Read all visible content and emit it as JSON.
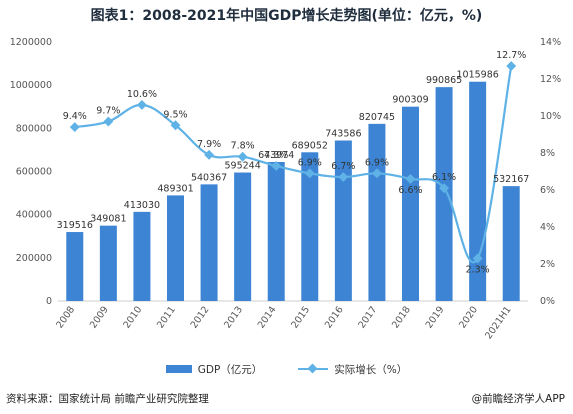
{
  "chart_data": {
    "type": "bar",
    "title": "图表1：2008-2021年中国GDP增长走势图(单位：亿元，%)",
    "categories": [
      "2008",
      "2009",
      "2010",
      "2011",
      "2012",
      "2013",
      "2014",
      "2015",
      "2016",
      "2017",
      "2018",
      "2019",
      "2020",
      "2021H1"
    ],
    "series": [
      {
        "name": "GDP（亿元）",
        "type": "bar",
        "axis": "left",
        "color": "#3d85d4",
        "values": [
          319516,
          349081,
          413030,
          489301,
          540367,
          595244,
          643974,
          689052,
          743586,
          820745,
          900309,
          990865,
          1015986,
          532167
        ],
        "labels": [
          "319516",
          "349081",
          "413030",
          "489301",
          "540367",
          "595244",
          "643974",
          "689052",
          "743586",
          "820745",
          "900309",
          "990865",
          "1015986",
          "532167"
        ]
      },
      {
        "name": "实际增长（%）",
        "type": "line",
        "axis": "right",
        "color": "#5fb2e6",
        "values": [
          9.4,
          9.7,
          10.6,
          9.5,
          7.9,
          7.8,
          7.3,
          6.9,
          6.7,
          6.9,
          6.6,
          6.1,
          2.3,
          12.7
        ],
        "labels": [
          "9.4%",
          "9.7%",
          "10.6%",
          "9.5%",
          "7.9%",
          "7.8%",
          "7.3%",
          "6.9%",
          "6.7%",
          "6.9%",
          "6.6%",
          "6.1%",
          "2.3%",
          "12.7%"
        ]
      }
    ],
    "y_left": {
      "lim": [
        0,
        1200000
      ],
      "ticks": [
        "0",
        "200000",
        "400000",
        "600000",
        "800000",
        "1000000",
        "1200000"
      ]
    },
    "y_right": {
      "lim": [
        0,
        14
      ],
      "ticks": [
        "0%",
        "2%",
        "4%",
        "6%",
        "8%",
        "10%",
        "12%",
        "14%"
      ]
    },
    "grid": false,
    "legend_position": "bottom"
  },
  "footer": {
    "source": "资料来源：国家统计局 前瞻产业研究院整理",
    "credit": "@前瞻经济学人APP"
  }
}
